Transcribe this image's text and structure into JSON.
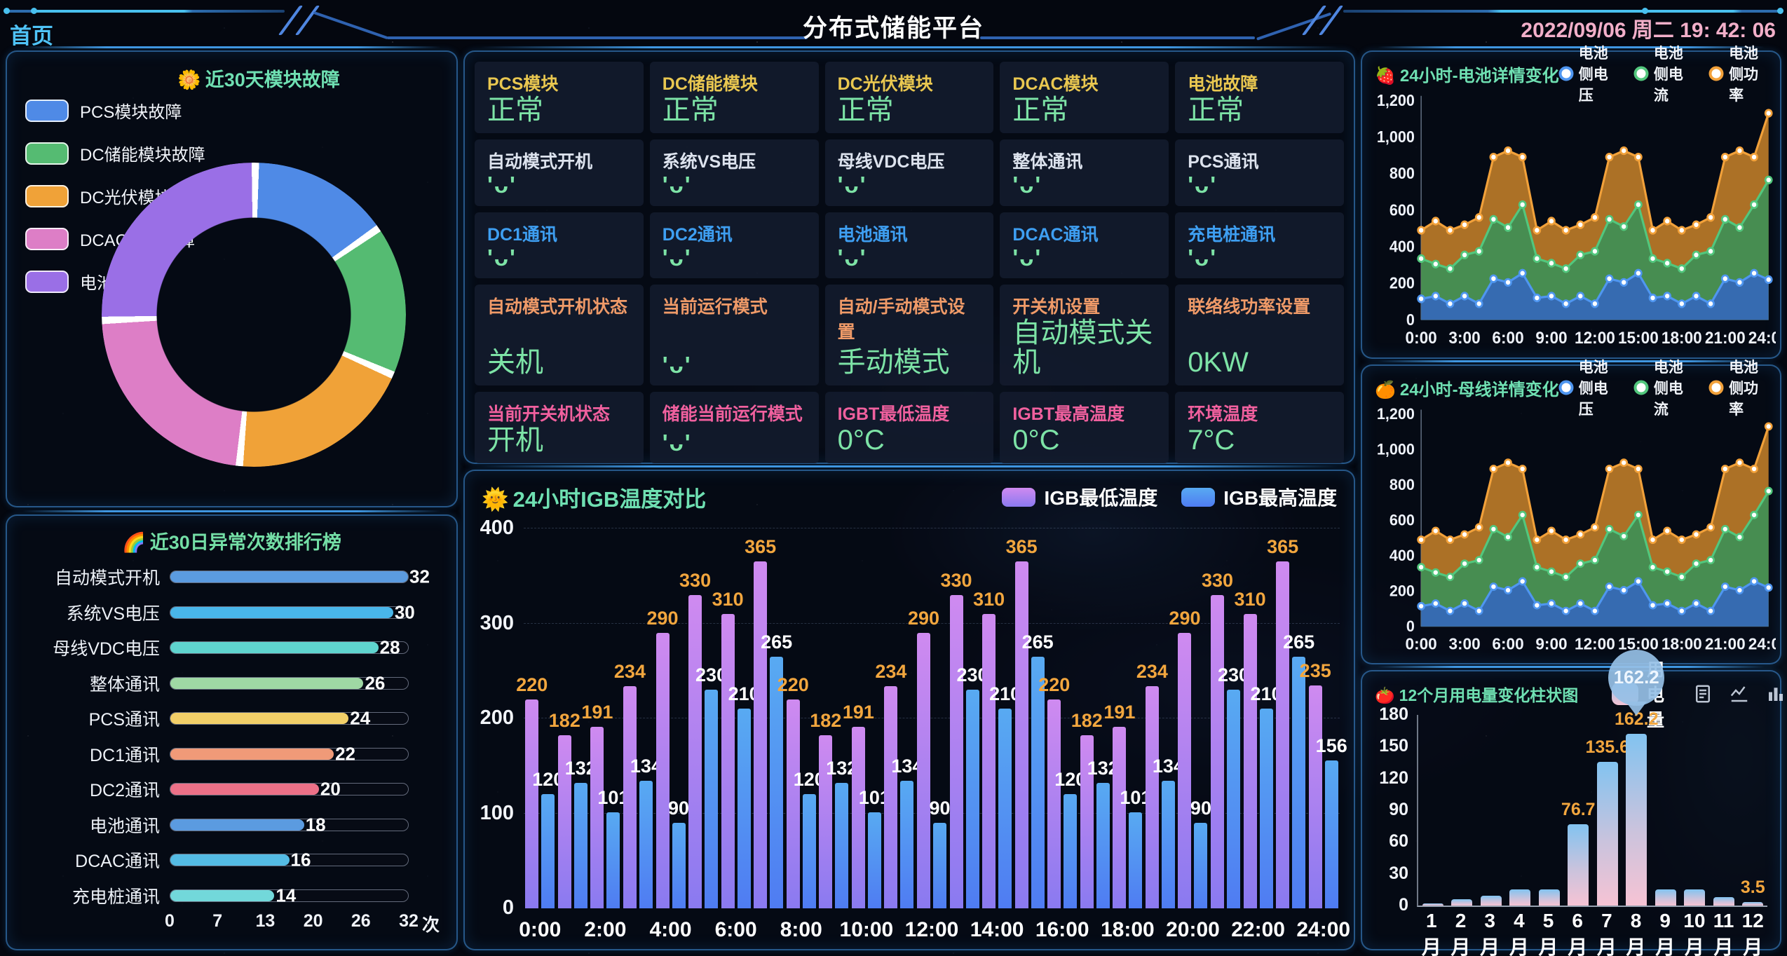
{
  "header": {
    "home_label": "首页",
    "title": "分布式储能平台",
    "datetime": "2022/09/06 周二 19: 42: 06"
  },
  "donut_panel": {
    "emoji": "🌼",
    "title": "近30天模块故障",
    "chart_data": {
      "type": "pie",
      "legend_position": "top-left",
      "segments": [
        {
          "label": "PCS模块故障",
          "color": "#4f8ae6",
          "pct": 15
        },
        {
          "label": "DC储能模块故障",
          "color": "#55bb72",
          "pct": 16
        },
        {
          "label": "DC光伏模块故障",
          "color": "#f0a238",
          "pct": 20
        },
        {
          "label": "DCAC模块故障",
          "color": "#dd7ec6",
          "pct": 23
        },
        {
          "label": "电池故障",
          "color": "#9a6fe6",
          "pct": 26
        }
      ]
    }
  },
  "rank_panel": {
    "emoji": "🌈",
    "title": "近30日异常次数排行榜",
    "unit": "次",
    "chart_data": {
      "type": "bar",
      "orientation": "horizontal",
      "max": 32,
      "axis_ticks": [
        0,
        7,
        13,
        20,
        26,
        32
      ],
      "items": [
        {
          "label": "自动模式开机",
          "value": 32,
          "color": "#5b9be0"
        },
        {
          "label": "系统VS电压",
          "value": 30,
          "color": "#49b6ea"
        },
        {
          "label": "母线VDC电压",
          "value": 28,
          "color": "#5fd4cf"
        },
        {
          "label": "整体通讯",
          "value": 26,
          "color": "#9fd8a4"
        },
        {
          "label": "PCS通讯",
          "value": 24,
          "color": "#f2cf68"
        },
        {
          "label": "DC1通讯",
          "value": 22,
          "color": "#f09a78"
        },
        {
          "label": "DC2通讯",
          "value": 20,
          "color": "#ec7188"
        },
        {
          "label": "电池通讯",
          "value": 18,
          "color": "#5b9be0"
        },
        {
          "label": "DCAC通讯",
          "value": 16,
          "color": "#54bbe4"
        },
        {
          "label": "充电桩通讯",
          "value": 14,
          "color": "#72d8da"
        }
      ]
    }
  },
  "status_panel": {
    "rows": [
      {
        "label_color": "#e9c750",
        "cells": [
          {
            "label": "PCS模块",
            "value": "正常"
          },
          {
            "label": "DC储能模块",
            "value": "正常"
          },
          {
            "label": "DC光伏模块",
            "value": "正常"
          },
          {
            "label": "DCAC模块",
            "value": "正常"
          },
          {
            "label": "电池故障",
            "value": "正常"
          }
        ]
      },
      {
        "label_color": "#dde3ee",
        "cells": [
          {
            "label": "自动模式开机",
            "value": "'ᴗ'"
          },
          {
            "label": "系统VS电压",
            "value": "'ᴗ'"
          },
          {
            "label": "母线VDC电压",
            "value": "'ᴗ'"
          },
          {
            "label": "整体通讯",
            "value": "'ᴗ'"
          },
          {
            "label": "PCS通讯",
            "value": "'ᴗ'"
          }
        ]
      },
      {
        "label_color": "#3e9ff2",
        "cells": [
          {
            "label": "DC1通讯",
            "value": "'ᴗ'"
          },
          {
            "label": "DC2通讯",
            "value": "'ᴗ'"
          },
          {
            "label": "电池通讯",
            "value": "'ᴗ'"
          },
          {
            "label": "DCAC通讯",
            "value": "'ᴗ'"
          },
          {
            "label": "充电桩通讯",
            "value": "'ᴗ'"
          }
        ]
      },
      {
        "label_color": "#ef9a68",
        "cells": [
          {
            "label": "自动模式开机状态",
            "value": "关机"
          },
          {
            "label": "当前运行模式",
            "value": "'ᴗ'"
          },
          {
            "label": "自动/手动模式设置",
            "value": "手动模式"
          },
          {
            "label": "开关机设置",
            "value": "自动模式关机"
          },
          {
            "label": "联络线功率设置",
            "value": "0KW"
          }
        ]
      },
      {
        "label_color": "#f0609e",
        "cells": [
          {
            "label": "当前开关机状态",
            "value": "开机"
          },
          {
            "label": "储能当前运行模式",
            "value": "'ᴗ'"
          },
          {
            "label": "IGBT最低温度",
            "value": "0°C"
          },
          {
            "label": "IGBT最高温度",
            "value": "0°C"
          },
          {
            "label": "环境温度",
            "value": "7°C"
          }
        ]
      }
    ]
  },
  "igb_panel": {
    "emoji": "🌞",
    "title": "24小时IGB温度对比",
    "chart_data": {
      "type": "bar",
      "ymax": 400,
      "y_ticks": [
        0,
        100,
        200,
        300,
        400
      ],
      "x_ticks": [
        "0:00",
        "2:00",
        "4:00",
        "6:00",
        "8:00",
        "10:00",
        "12:00",
        "14:00",
        "16:00",
        "18:00",
        "20:00",
        "22:00",
        "24:00"
      ],
      "series": [
        {
          "name": "IGB最低温度",
          "swatch_top": "#cf8af0",
          "swatch_bottom": "#8a7af0",
          "label_color": "#f2a63e",
          "values": [
            220,
            182,
            191,
            234,
            290,
            330,
            310,
            365,
            220,
            182,
            191,
            234,
            290,
            330,
            310,
            365,
            220,
            182,
            191,
            234,
            290,
            330,
            310,
            365,
            235
          ]
        },
        {
          "name": "IGB最高温度",
          "swatch_top": "#58aaf2",
          "swatch_bottom": "#4f7cf2",
          "label_color": "#ffffff",
          "values": [
            120,
            132,
            101,
            134,
            90,
            230,
            210,
            265,
            120,
            132,
            101,
            134,
            90,
            230,
            210,
            265,
            120,
            132,
            101,
            134,
            90,
            230,
            210,
            265,
            156
          ]
        }
      ]
    }
  },
  "battery_panel": {
    "emoji": "🍓",
    "title": "24小时-电池详情变化",
    "legend": [
      {
        "label": "电池侧电压",
        "color": "#4f96f0"
      },
      {
        "label": "电池侧电流",
        "color": "#52c77d"
      },
      {
        "label": "电池侧功率",
        "color": "#f2a13a"
      }
    ],
    "chart_data": {
      "type": "area",
      "ymax": 1200,
      "y_tick_vals": [
        0,
        200,
        400,
        600,
        800,
        1000,
        1200
      ],
      "y_ticks": [
        "0",
        "200",
        "400",
        "600",
        "800",
        "1,000",
        "1,200"
      ],
      "x_ticks": [
        "0:00",
        "3:00",
        "6:00",
        "9:00",
        "12:00",
        "15:00",
        "18:00",
        "21:00",
        "24:00"
      ],
      "series": [
        {
          "name": "电池侧功率",
          "line": "#f2a13a",
          "fill": "#b97a28",
          "values": [
            490,
            540,
            490,
            520,
            560,
            890,
            925,
            890,
            490,
            540,
            490,
            520,
            560,
            890,
            925,
            890,
            490,
            540,
            490,
            520,
            560,
            890,
            925,
            890,
            1130
          ]
        },
        {
          "name": "电池侧电流",
          "line": "#52c77d",
          "fill": "#3f8f55",
          "values": [
            335,
            305,
            280,
            355,
            375,
            550,
            505,
            630,
            335,
            310,
            280,
            355,
            375,
            550,
            510,
            630,
            335,
            310,
            280,
            355,
            375,
            550,
            505,
            630,
            765
          ]
        },
        {
          "name": "电池侧电压",
          "line": "#4f96f0",
          "fill": "#3568b8",
          "values": [
            115,
            130,
            88,
            130,
            88,
            225,
            205,
            255,
            120,
            130,
            88,
            130,
            88,
            225,
            205,
            255,
            120,
            130,
            88,
            130,
            88,
            225,
            205,
            255,
            220
          ]
        }
      ]
    }
  },
  "busbar_panel": {
    "emoji": "🍊",
    "title": "24小时-母线详情变化",
    "legend": [
      {
        "label": "电池侧电压",
        "color": "#4f96f0"
      },
      {
        "label": "电池侧电流",
        "color": "#52c77d"
      },
      {
        "label": "电池侧功率",
        "color": "#f2a13a"
      }
    ],
    "chart_data": {
      "type": "area",
      "ymax": 1200,
      "y_tick_vals": [
        0,
        200,
        400,
        600,
        800,
        1000,
        1200
      ],
      "y_ticks": [
        "0",
        "200",
        "400",
        "600",
        "800",
        "1,000",
        "1,200"
      ],
      "x_ticks": [
        "0:00",
        "3:00",
        "6:00",
        "9:00",
        "12:00",
        "15:00",
        "18:00",
        "21:00",
        "24:00"
      ],
      "series": [
        {
          "name": "电池侧功率",
          "line": "#f2a13a",
          "fill": "#b97a28",
          "values": [
            490,
            540,
            490,
            520,
            560,
            890,
            925,
            890,
            490,
            540,
            490,
            520,
            560,
            890,
            925,
            890,
            490,
            540,
            490,
            520,
            560,
            890,
            925,
            890,
            1130
          ]
        },
        {
          "name": "电池侧电流",
          "line": "#52c77d",
          "fill": "#3f8f55",
          "values": [
            335,
            305,
            280,
            355,
            375,
            550,
            505,
            630,
            335,
            310,
            280,
            355,
            375,
            550,
            510,
            630,
            335,
            310,
            280,
            355,
            375,
            550,
            505,
            630,
            765
          ]
        },
        {
          "name": "电池侧电压",
          "line": "#4f96f0",
          "fill": "#3568b8",
          "values": [
            115,
            130,
            88,
            130,
            88,
            225,
            205,
            255,
            120,
            130,
            88,
            130,
            88,
            225,
            205,
            255,
            120,
            130,
            88,
            130,
            88,
            225,
            205,
            255,
            220
          ]
        }
      ]
    }
  },
  "monthly_panel": {
    "emoji": "🍅",
    "title": "12个月用电量变化柱状图",
    "legend_label": "用电量",
    "chart_data": {
      "type": "bar",
      "ymax": 180,
      "y_ticks": [
        0,
        30,
        60,
        90,
        120,
        150,
        180
      ],
      "categories": [
        "1月",
        "2月",
        "3月",
        "4月",
        "5月",
        "6月",
        "7月",
        "8月",
        "9月",
        "10月",
        "11月",
        "12月"
      ],
      "values": [
        2,
        6,
        9,
        15,
        15,
        76.7,
        135.6,
        162.2,
        15,
        15,
        8,
        3.5
      ],
      "labeled_indices": [
        5,
        6,
        7,
        11
      ],
      "pin_index": 7,
      "pin_value": "162.2"
    }
  }
}
